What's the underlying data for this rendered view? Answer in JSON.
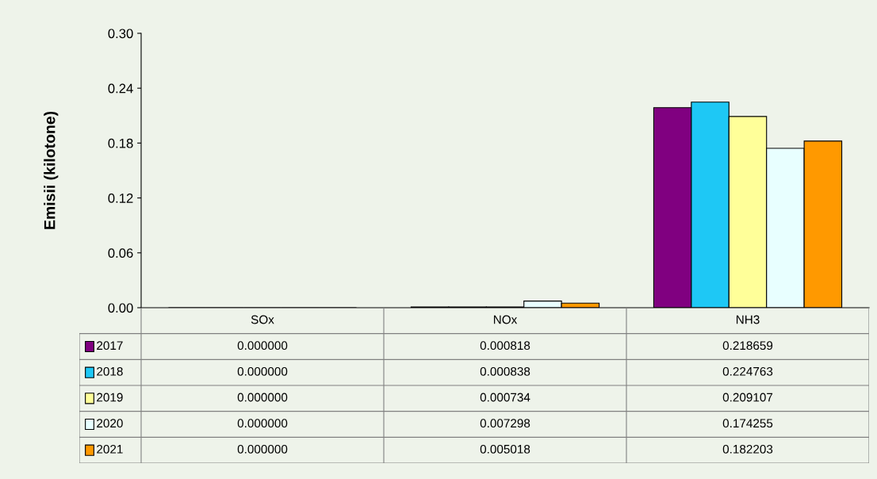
{
  "chart_data": {
    "type": "bar",
    "ylabel": "Emisii (kilotone)",
    "categories": [
      "SOx",
      "NOx",
      "NH3"
    ],
    "series": [
      {
        "name": "2017",
        "color": "#800080",
        "values": [
          0.0,
          0.000818,
          0.218659
        ],
        "value_labels": [
          "0.000000",
          "0.000818",
          "0.218659"
        ]
      },
      {
        "name": "2018",
        "color": "#1ec8f5",
        "values": [
          0.0,
          0.000838,
          0.224763
        ],
        "value_labels": [
          "0.000000",
          "0.000838",
          "0.224763"
        ]
      },
      {
        "name": "2019",
        "color": "#ffff99",
        "values": [
          0.0,
          0.000734,
          0.209107
        ],
        "value_labels": [
          "0.000000",
          "0.000734",
          "0.209107"
        ]
      },
      {
        "name": "2020",
        "color": "#e8ffff",
        "values": [
          0.0,
          0.007298,
          0.174255
        ],
        "value_labels": [
          "0.000000",
          "0.007298",
          "0.174255"
        ]
      },
      {
        "name": "2021",
        "color": "#ff9900",
        "values": [
          0.0,
          0.005018,
          0.182203
        ],
        "value_labels": [
          "0.000000",
          "0.005018",
          "0.182203"
        ]
      }
    ],
    "ylim": [
      0,
      0.3
    ],
    "yticks": [
      {
        "value": 0,
        "label": "0.00"
      },
      {
        "value": 0.06,
        "label": "0.06"
      },
      {
        "value": 0.12,
        "label": "0.12"
      },
      {
        "value": 0.18,
        "label": "0.18"
      },
      {
        "value": 0.24,
        "label": "0.24"
      },
      {
        "value": 0.3,
        "label": "0.30"
      }
    ],
    "grid": false,
    "legend": "bottom"
  }
}
